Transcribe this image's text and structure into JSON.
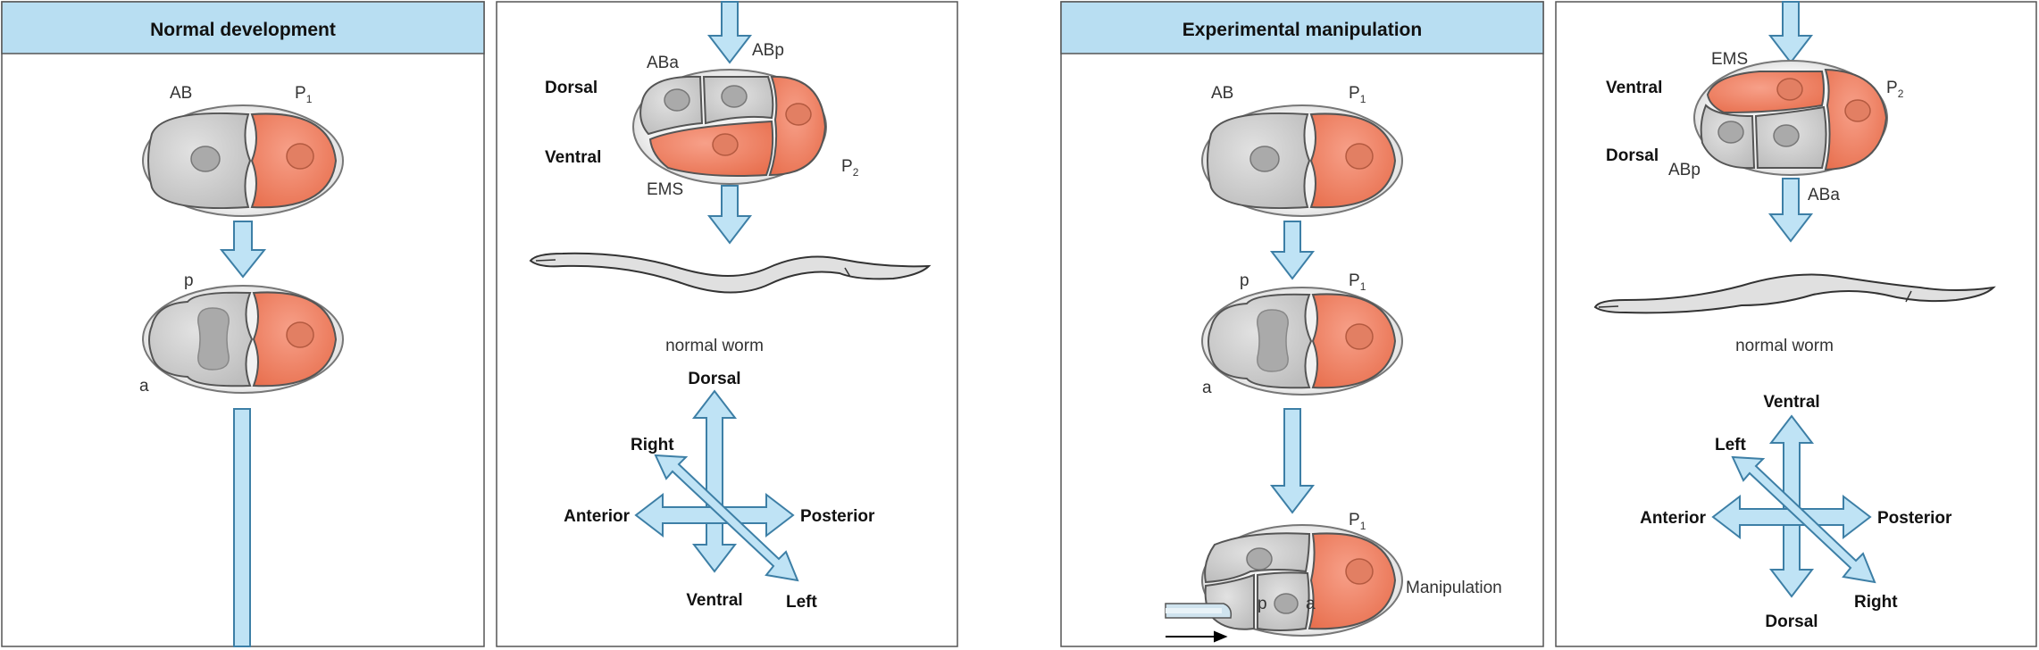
{
  "headers": {
    "normal": "Normal development",
    "experimental": "Experimental manipulation"
  },
  "cells": {
    "AB": "AB",
    "P": "P",
    "sub1": "1",
    "sub2": "2",
    "p": "p",
    "a": "a",
    "ABa": "ABa",
    "ABp": "ABp",
    "EMS": "EMS"
  },
  "axes": {
    "dorsal": "Dorsal",
    "ventral": "Ventral",
    "anterior": "Anterior",
    "posterior": "Posterior",
    "left": "Left",
    "right": "Right"
  },
  "captions": {
    "normal_worm": "normal worm",
    "manipulation": "Manipulation"
  },
  "colors": {
    "header_bg": "#b8def2",
    "arrow_fill": "#bfe3f5",
    "arrow_stroke": "#3d7fa6",
    "cell_grey": "#d3d3d3",
    "cell_orange": "#f08a6c",
    "worm_fill": "#e0e0e0"
  }
}
